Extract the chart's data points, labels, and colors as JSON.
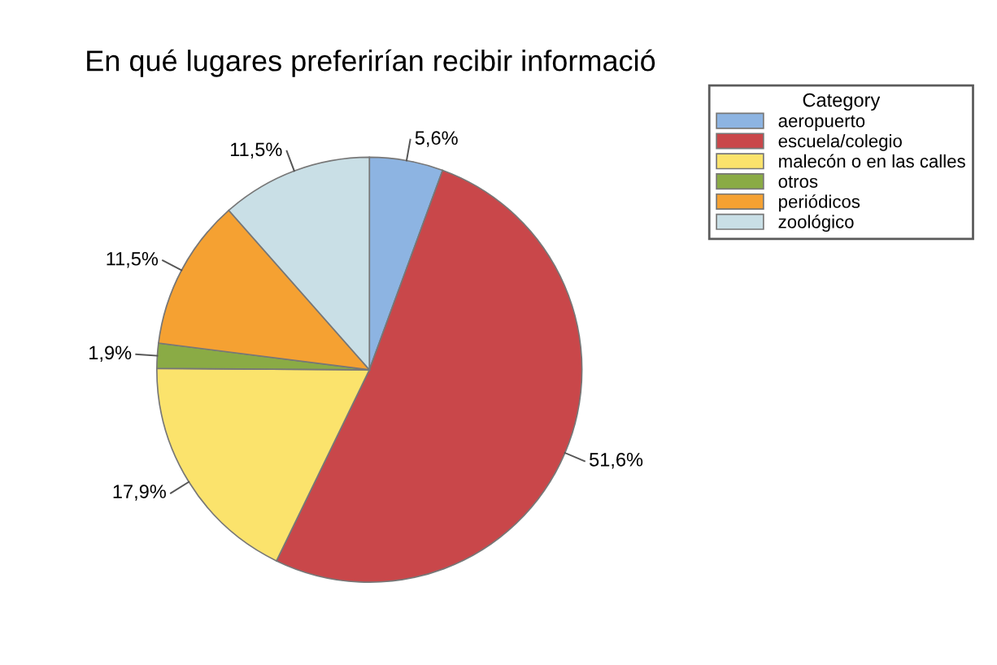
{
  "chart_data": {
    "type": "pie",
    "title": "En qué lugares preferirían recibir informació",
    "legend_title": "Category",
    "categories": [
      "aeropuerto",
      "escuela/colegio",
      "malecón o en las calles",
      "otros",
      "periódicos",
      "zoológico"
    ],
    "values": [
      5.6,
      51.6,
      17.9,
      1.9,
      11.5,
      11.5
    ],
    "colors": [
      "#8db4e2",
      "#c9474a",
      "#fbe36c",
      "#8aab45",
      "#f5a132",
      "#c9dfe6"
    ],
    "value_labels": [
      "5,6%",
      "51,6%",
      "17,9%",
      "1,9%",
      "11,5%",
      "11,5%"
    ],
    "legend": "top right"
  }
}
